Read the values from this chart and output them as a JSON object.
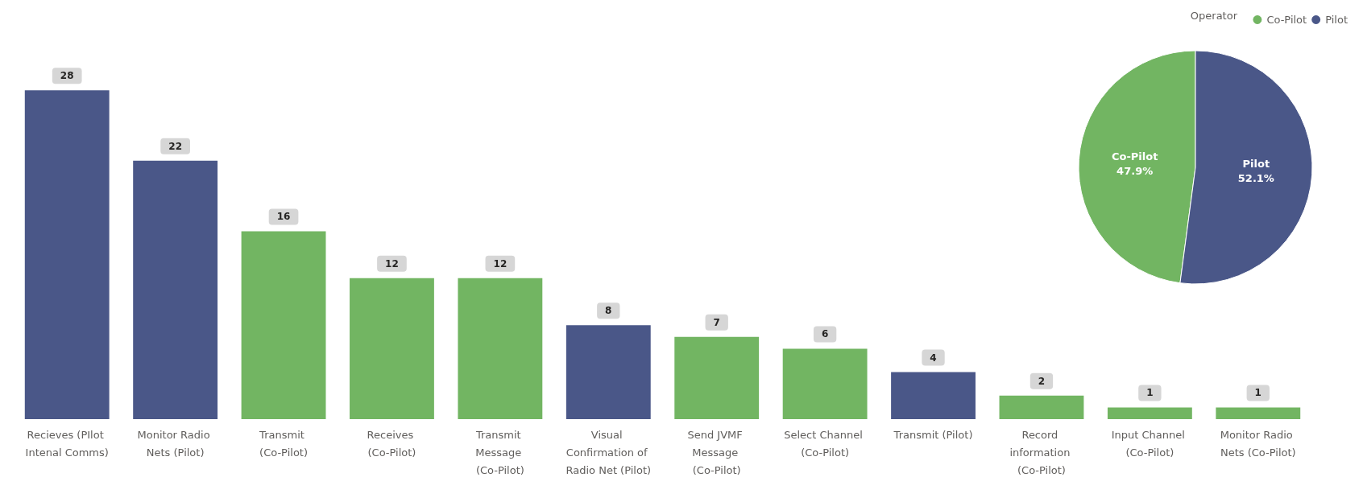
{
  "chart_data": [
    {
      "type": "bar",
      "categories": [
        "Recieves (PIlot Intenal Comms)",
        "Monitor Radio Nets (Pilot)",
        "Transmit (Co-Pilot)",
        "Receives (Co-Pilot)",
        "Transmit Message (Co-Pilot)",
        "Visual Confirmation of Radio Net (Pilot)",
        "Send JVMF Message (Co-Pilot)",
        "Select Channel (Co-Pilot)",
        "Transmit (Pilot)",
        "Record information (Co-Pilot)",
        "Input Channel (Co-Pilot)",
        "Monitor Radio Nets (Co-Pilot)"
      ],
      "values": [
        28,
        22,
        16,
        12,
        12,
        8,
        7,
        6,
        4,
        2,
        1,
        1
      ],
      "colors": [
        "#4a5788",
        "#4a5788",
        "#72b562",
        "#72b562",
        "#72b562",
        "#4a5788",
        "#72b562",
        "#72b562",
        "#4a5788",
        "#72b562",
        "#72b562",
        "#72b562"
      ],
      "data_labels": true
    },
    {
      "type": "pie",
      "legend_title": "Operator",
      "legend": "top right",
      "categories": [
        "Co-Pilot",
        "Pilot"
      ],
      "values": [
        47.9,
        52.1
      ],
      "value_labels": [
        "47.9%",
        "52.1%"
      ],
      "colors": [
        "#72b562",
        "#4a5788"
      ],
      "data_labels": true
    }
  ]
}
